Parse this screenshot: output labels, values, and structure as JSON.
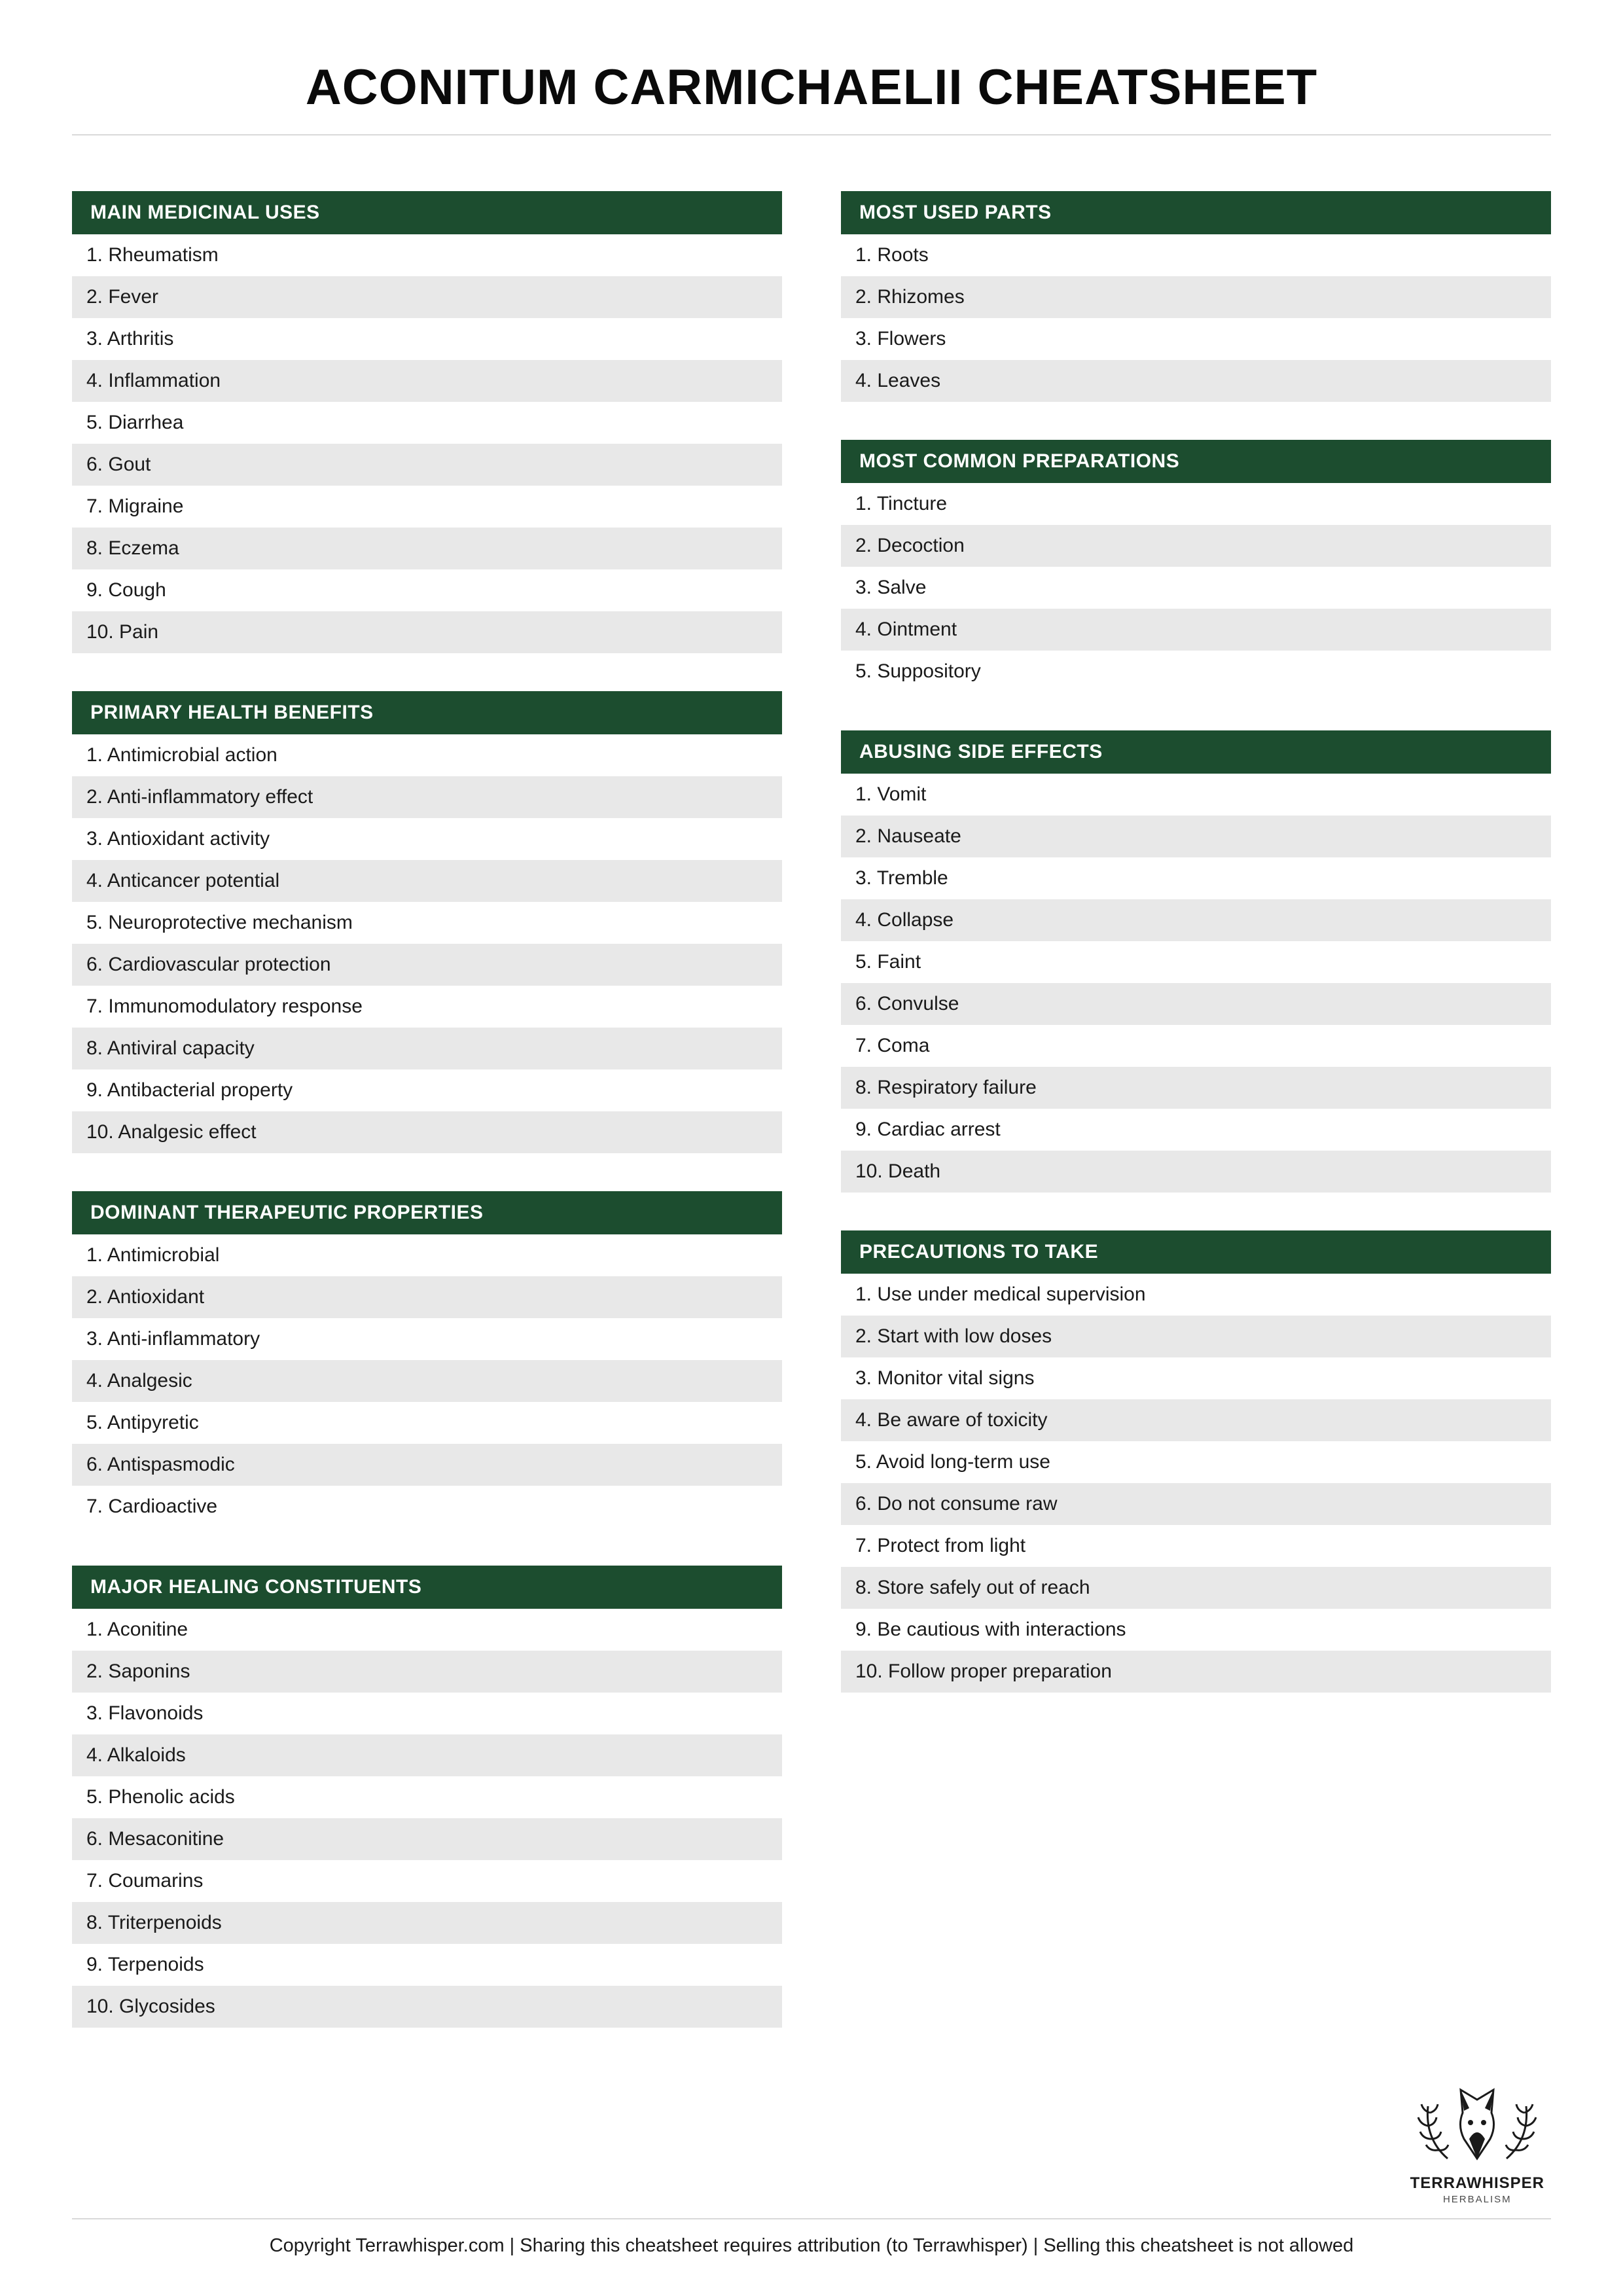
{
  "title": "ACONITUM CARMICHAELII CHEATSHEET",
  "colors": {
    "header_bg": "#1c4d2f",
    "header_text": "#ffffff",
    "row_bg": "#ffffff",
    "row_alt_bg": "#e8e8e8",
    "divider": "#d9d9d9",
    "text": "#1a1a1a"
  },
  "left": [
    {
      "title": "MAIN MEDICINAL USES",
      "items": [
        "1. Rheumatism",
        "2. Fever",
        "3. Arthritis",
        "4. Inflammation",
        "5. Diarrhea",
        "6. Gout",
        "7. Migraine",
        "8. Eczema",
        "9. Cough",
        "10. Pain"
      ]
    },
    {
      "title": "PRIMARY HEALTH BENEFITS",
      "items": [
        "1. Antimicrobial action",
        "2. Anti-inflammatory effect",
        "3. Antioxidant activity",
        "4. Anticancer potential",
        "5. Neuroprotective mechanism",
        "6. Cardiovascular protection",
        "7. Immunomodulatory response",
        "8. Antiviral capacity",
        "9. Antibacterial property",
        "10. Analgesic effect"
      ]
    },
    {
      "title": "DOMINANT THERAPEUTIC PROPERTIES",
      "items": [
        "1. Antimicrobial",
        "2. Antioxidant",
        "3. Anti-inflammatory",
        "4. Analgesic",
        "5. Antipyretic",
        "6. Antispasmodic",
        "7. Cardioactive"
      ]
    },
    {
      "title": "MAJOR HEALING CONSTITUENTS",
      "items": [
        "1. Aconitine",
        "2. Saponins",
        "3. Flavonoids",
        "4. Alkaloids",
        "5. Phenolic acids",
        "6. Mesaconitine",
        "7. Coumarins",
        "8. Triterpenoids",
        "9. Terpenoids",
        "10. Glycosides"
      ]
    }
  ],
  "right": [
    {
      "title": "MOST USED PARTS",
      "items": [
        "1. Roots",
        "2. Rhizomes",
        "3. Flowers",
        "4. Leaves"
      ]
    },
    {
      "title": "MOST COMMON PREPARATIONS",
      "items": [
        "1. Tincture",
        "2. Decoction",
        "3. Salve",
        "4. Ointment",
        "5. Suppository"
      ]
    },
    {
      "title": "ABUSING SIDE EFFECTS",
      "items": [
        "1. Vomit",
        "2. Nauseate",
        "3. Tremble",
        "4. Collapse",
        "5. Faint",
        "6. Convulse",
        "7. Coma",
        "8. Respiratory failure",
        "9. Cardiac arrest",
        "10. Death"
      ]
    },
    {
      "title": "PRECAUTIONS TO TAKE",
      "items": [
        "1. Use under medical supervision",
        "2. Start with low doses",
        "3. Monitor vital signs",
        "4. Be aware of toxicity",
        "5. Avoid long-term use",
        "6. Do not consume raw",
        "7. Protect from light",
        "8. Store safely out of reach",
        "9. Be cautious with interactions",
        "10. Follow proper preparation"
      ]
    }
  ],
  "logo": {
    "name": "TERRAWHISPER",
    "sub": "HERBALISM"
  },
  "footer": "Copyright Terrawhisper.com | Sharing this cheatsheet requires attribution (to Terrawhisper) | Selling this cheatsheet is not allowed"
}
